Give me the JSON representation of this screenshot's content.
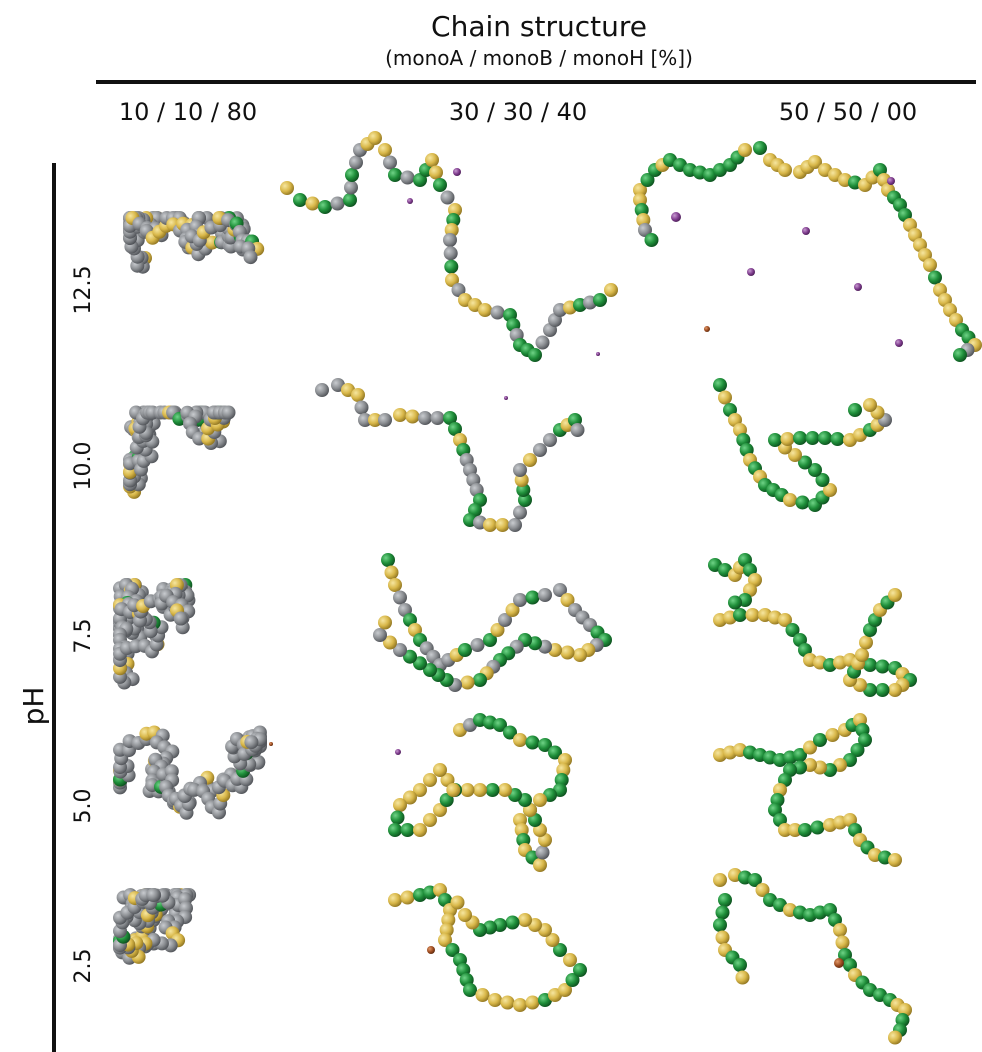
{
  "header": {
    "title": "Chain structure",
    "subtitle": "(monoA / monoB / monoH [%])"
  },
  "columns": [
    {
      "label": "10 / 10 / 80"
    },
    {
      "label": "30 / 30 / 40"
    },
    {
      "label": "50 / 50 / 00"
    }
  ],
  "axis": {
    "label": "pH"
  },
  "rows": [
    {
      "label": "12.5"
    },
    {
      "label": "10.0"
    },
    {
      "label": "7.5"
    },
    {
      "label": "5.0"
    },
    {
      "label": "2.5"
    }
  ],
  "colors": {
    "grey_bead": "#8c8f93",
    "yellow_bead": "#d9b84a",
    "green_bead": "#1f8f3a",
    "ion_purple": "#7d3a8c",
    "ion_brown": "#9b4a1f"
  }
}
